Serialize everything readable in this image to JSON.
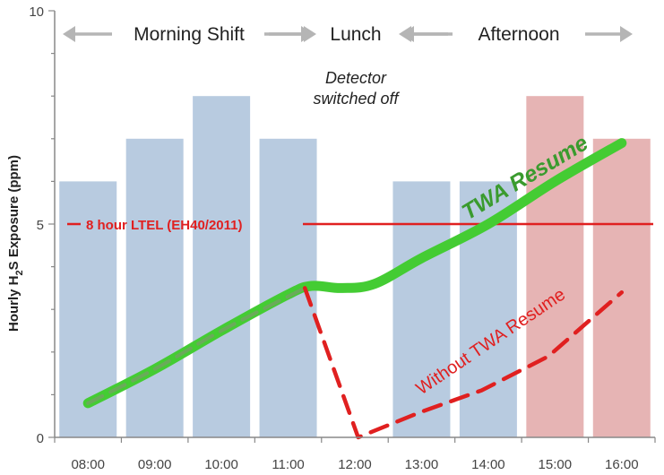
{
  "chart_data": {
    "type": "bar",
    "categories": [
      "08:00",
      "09:00",
      "10:00",
      "11:00",
      "12:00",
      "13:00",
      "14:00",
      "15:00",
      "16:00"
    ],
    "values": [
      6,
      7,
      8,
      7,
      null,
      6,
      6,
      8,
      7
    ],
    "bar_colors": [
      "#b8cbe0",
      "#b8cbe0",
      "#b8cbe0",
      "#b8cbe0",
      null,
      "#b8cbe0",
      "#b8cbe0",
      "#e6b4b4",
      "#e6b4b4"
    ],
    "ylim": [
      0,
      10
    ],
    "yticks": [
      0,
      5,
      10
    ],
    "ylabel": "Hourly H",
    "ylabel_sub": "2",
    "ylabel_rest": "S Exposure (ppm)",
    "reference_line": {
      "value": 5,
      "label": "8 hour LTEL (EH40/2011)",
      "color": "#e02020"
    },
    "series": [
      {
        "name": "TWA Resume",
        "style": "solid-thick",
        "color": "#44cc33",
        "x": [
          0,
          1,
          2,
          3,
          3.35,
          3.8,
          4.3,
          5,
          6,
          7,
          8
        ],
        "y": [
          0.8,
          1.6,
          2.5,
          3.35,
          3.55,
          3.5,
          3.6,
          4.2,
          5.0,
          6.0,
          6.9
        ]
      },
      {
        "name": "",
        "style": "dashed-overlay",
        "color": "#6aaa5a",
        "x": [
          0,
          1,
          2,
          3.25
        ],
        "y": [
          0.8,
          1.6,
          2.5,
          3.5
        ]
      },
      {
        "name": "Without TWA Resume",
        "style": "dashed",
        "color": "#e02020",
        "x": [
          3.25,
          4.05,
          5.0,
          5.9,
          6.9,
          8.0
        ],
        "y": [
          3.5,
          0,
          0.6,
          1.1,
          1.9,
          3.4
        ]
      }
    ],
    "shift_bands": [
      {
        "label": "Morning Shift"
      },
      {
        "label": "Lunch"
      },
      {
        "label": "Afternoon"
      }
    ],
    "annotations": {
      "detector_line1": "Detector",
      "detector_line2": "switched off",
      "twa_label": "TWA Resume",
      "without_label": "Without TWA Resume"
    },
    "grid": false,
    "colors": {
      "bar_blue": "#b8cbe0",
      "bar_red": "#e6b4b4",
      "axis": "#888888",
      "band_arrow": "#b5b5b5"
    }
  }
}
